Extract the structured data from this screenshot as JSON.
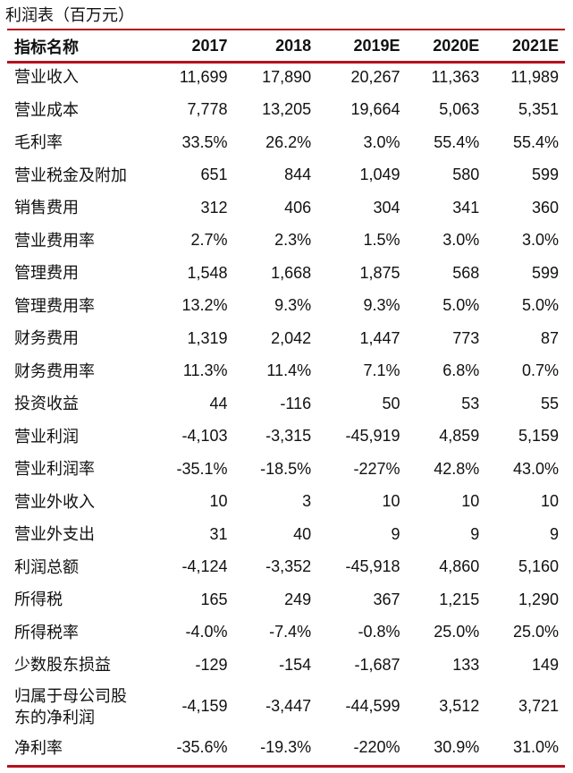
{
  "title": "利润表（百万元）",
  "accent_color": "#b4121d",
  "header": [
    "指标名称",
    "2017",
    "2018",
    "2019E",
    "2020E",
    "2021E"
  ],
  "rows": [
    {
      "name": "营业收入",
      "values": [
        "11,699",
        "17,890",
        "20,267",
        "11,363",
        "11,989"
      ]
    },
    {
      "name": "营业成本",
      "values": [
        "7,778",
        "13,205",
        "19,664",
        "5,063",
        "5,351"
      ]
    },
    {
      "name": "毛利率",
      "values": [
        "33.5%",
        "26.2%",
        "3.0%",
        "55.4%",
        "55.4%"
      ]
    },
    {
      "name": "营业税金及附加",
      "values": [
        "651",
        "844",
        "1,049",
        "580",
        "599"
      ]
    },
    {
      "name": "销售费用",
      "values": [
        "312",
        "406",
        "304",
        "341",
        "360"
      ]
    },
    {
      "name": "营业费用率",
      "values": [
        "2.7%",
        "2.3%",
        "1.5%",
        "3.0%",
        "3.0%"
      ]
    },
    {
      "name": "管理费用",
      "values": [
        "1,548",
        "1,668",
        "1,875",
        "568",
        "599"
      ]
    },
    {
      "name": "管理费用率",
      "values": [
        "13.2%",
        "9.3%",
        "9.3%",
        "5.0%",
        "5.0%"
      ]
    },
    {
      "name": "财务费用",
      "values": [
        "1,319",
        "2,042",
        "1,447",
        "773",
        "87"
      ]
    },
    {
      "name": "财务费用率",
      "values": [
        "11.3%",
        "11.4%",
        "7.1%",
        "6.8%",
        "0.7%"
      ]
    },
    {
      "name": "投资收益",
      "values": [
        "44",
        "-116",
        "50",
        "53",
        "55"
      ]
    },
    {
      "name": "营业利润",
      "values": [
        "-4,103",
        "-3,315",
        "-45,919",
        "4,859",
        "5,159"
      ]
    },
    {
      "name": "营业利润率",
      "values": [
        "-35.1%",
        "-18.5%",
        "-227%",
        "42.8%",
        "43.0%"
      ]
    },
    {
      "name": "营业外收入",
      "values": [
        "10",
        "3",
        "10",
        "10",
        "10"
      ]
    },
    {
      "name": "营业外支出",
      "values": [
        "31",
        "40",
        "9",
        "9",
        "9"
      ]
    },
    {
      "name": "利润总额",
      "values": [
        "-4,124",
        "-3,352",
        "-45,918",
        "4,860",
        "5,160"
      ]
    },
    {
      "name": "所得税",
      "values": [
        "165",
        "249",
        "367",
        "1,215",
        "1,290"
      ]
    },
    {
      "name": "所得税率",
      "values": [
        "-4.0%",
        "-7.4%",
        "-0.8%",
        "25.0%",
        "25.0%"
      ]
    },
    {
      "name": "少数股东损益",
      "values": [
        "-129",
        "-154",
        "-1,687",
        "133",
        "149"
      ]
    },
    {
      "name": "归属于母公司股东的净利润",
      "name_lines": [
        "归属于母公司股",
        "东的净利润"
      ],
      "values": [
        "-4,159",
        "-3,447",
        "-44,599",
        "3,512",
        "3,721"
      ]
    },
    {
      "name": "净利率",
      "values": [
        "-35.6%",
        "-19.3%",
        "-220%",
        "30.9%",
        "31.0%"
      ]
    }
  ]
}
